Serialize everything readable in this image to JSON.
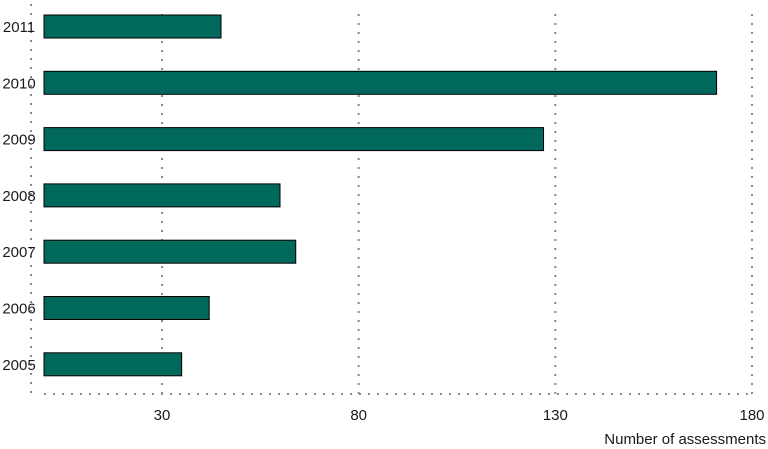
{
  "chart_data": {
    "type": "bar",
    "orientation": "horizontal",
    "categories": [
      "2011",
      "2010",
      "2009",
      "2008",
      "2007",
      "2006",
      "2005"
    ],
    "values": [
      45,
      171,
      127,
      60,
      64,
      42,
      35
    ],
    "xlabel": "Number of assessments",
    "xlim": [
      0,
      180
    ],
    "xticks": [
      30,
      80,
      130,
      180
    ],
    "grid": true,
    "legend": "none",
    "bar_color": "#00695c"
  }
}
